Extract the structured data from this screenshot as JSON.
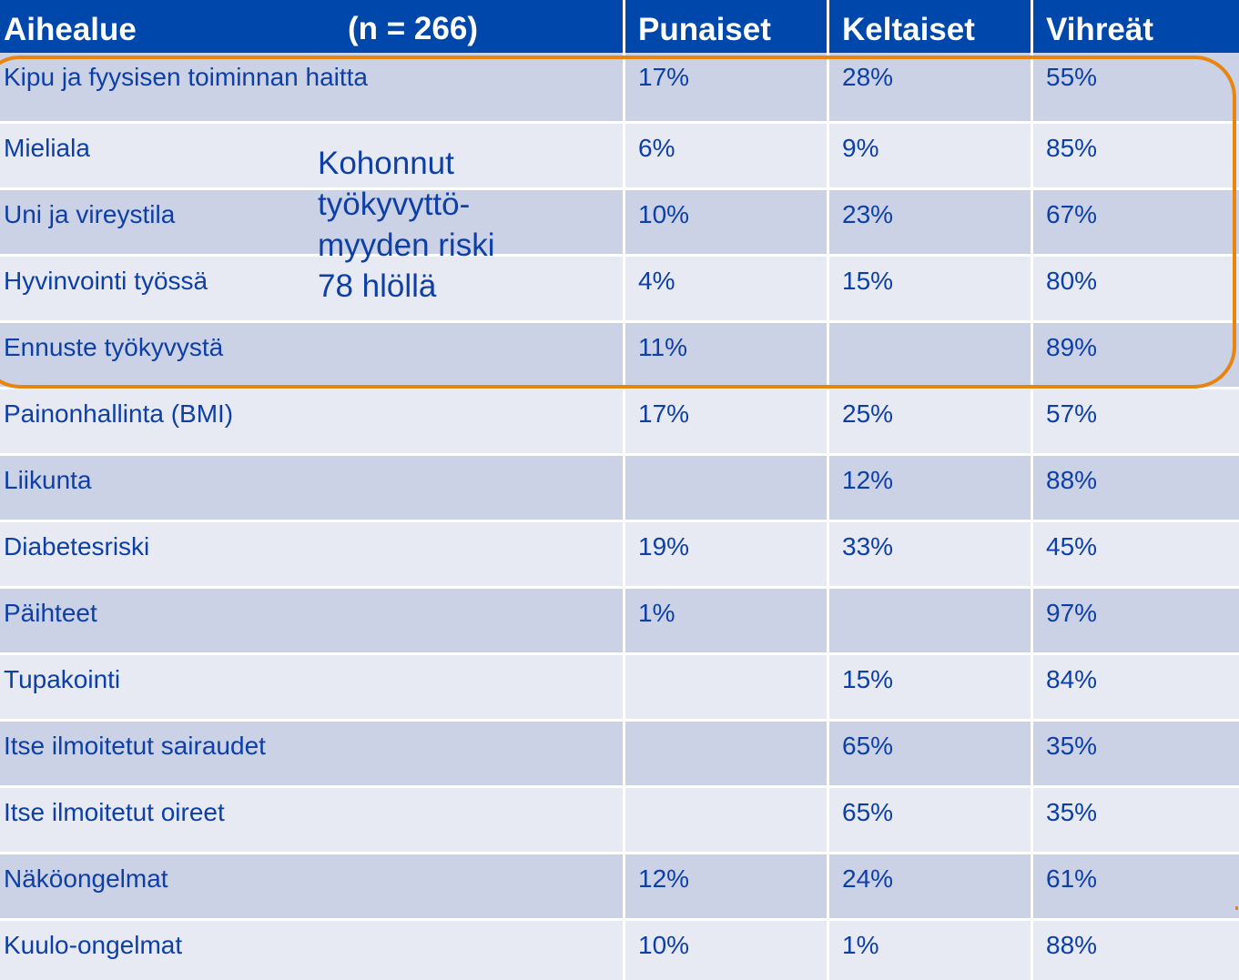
{
  "header": {
    "col_topic": "Aihealue",
    "n_label": "(n = 266)",
    "col_red": "Punaiset",
    "col_yellow": "Keltaiset",
    "col_green": "Vihreät"
  },
  "annotation": {
    "text": "Kohonnut\ntyökyvyttö-\nmyyden riski\n78 hlöllä"
  },
  "rows": [
    {
      "topic": "Kipu ja fyysisen toiminnan haitta",
      "red": "17%",
      "yellow": "28%",
      "green": "55%"
    },
    {
      "topic": "Mieliala",
      "red": "6%",
      "yellow": "9%",
      "green": "85%"
    },
    {
      "topic": "Uni ja vireystila",
      "red": "10%",
      "yellow": "23%",
      "green": "67%"
    },
    {
      "topic": "Hyvinvointi työssä",
      "red": "4%",
      "yellow": "15%",
      "green": "80%"
    },
    {
      "topic": "Ennuste työkyvystä",
      "red": "11%",
      "yellow": "",
      "green": "89%"
    },
    {
      "topic": "Painonhallinta (BMI)",
      "red": "17%",
      "yellow": "25%",
      "green": "57%"
    },
    {
      "topic": "Liikunta",
      "red": "",
      "yellow": "12%",
      "green": "88%"
    },
    {
      "topic": "Diabetesriski",
      "red": "19%",
      "yellow": "33%",
      "green": "45%"
    },
    {
      "topic": "Päihteet",
      "red": "1%",
      "yellow": "",
      "green": "97%"
    },
    {
      "topic": "Tupakointi",
      "red": "",
      "yellow": "15%",
      "green": "84%"
    },
    {
      "topic": "Itse ilmoitetut sairaudet",
      "red": "",
      "yellow": "65%",
      "green": "35%"
    },
    {
      "topic": "Itse ilmoitetut oireet",
      "red": "",
      "yellow": "65%",
      "green": "35%"
    },
    {
      "topic": "Näköongelmat",
      "red": "12%",
      "yellow": "24%",
      "green": "61%"
    },
    {
      "topic": "Kuulo-ongelmat",
      "red": "10%",
      "yellow": "1%",
      "green": "88%"
    }
  ],
  "colors": {
    "header_bg": "#0047ab",
    "row_dark": "#cbd2e6",
    "row_light": "#e7eaf3",
    "text": "#0d3fa6",
    "highlight": "#e88510"
  }
}
